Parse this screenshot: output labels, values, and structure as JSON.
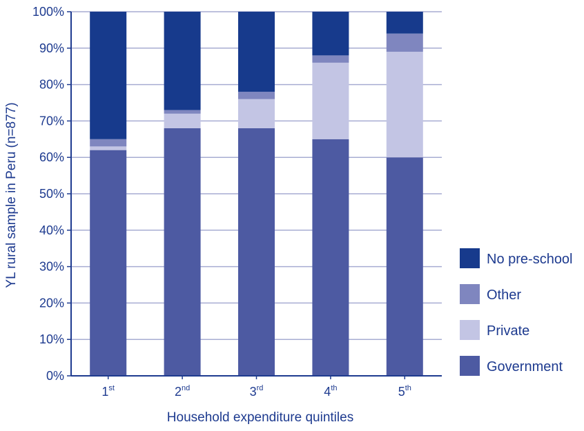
{
  "chart_data": {
    "type": "bar",
    "stacked": true,
    "title": "",
    "xlabel": "Household expenditure quintiles",
    "ylabel": "YL rural sample in Peru (n=877)",
    "ylim": [
      0,
      100
    ],
    "y_tick_suffix": "%",
    "y_ticks": [
      0,
      10,
      20,
      30,
      40,
      50,
      60,
      70,
      80,
      90,
      100
    ],
    "categories": [
      {
        "base": "1",
        "sup": "st"
      },
      {
        "base": "2",
        "sup": "nd"
      },
      {
        "base": "3",
        "sup": "rd"
      },
      {
        "base": "4",
        "sup": "th"
      },
      {
        "base": "5",
        "sup": "th"
      }
    ],
    "series": [
      {
        "name": "Government",
        "color": "#4d5aa2",
        "values": [
          62,
          68,
          68,
          65,
          60
        ]
      },
      {
        "name": "Private",
        "color": "#c3c5e4",
        "values": [
          1,
          4,
          8,
          21,
          29
        ]
      },
      {
        "name": "Other",
        "color": "#7f86bf",
        "values": [
          2,
          1,
          2,
          2,
          5
        ]
      },
      {
        "name": "No pre-school",
        "color": "#173a8c",
        "values": [
          35,
          27,
          22,
          12,
          6
        ]
      }
    ],
    "grid": true,
    "legend_position": "right",
    "legend_order": [
      "No pre-school",
      "Other",
      "Private",
      "Government"
    ]
  }
}
